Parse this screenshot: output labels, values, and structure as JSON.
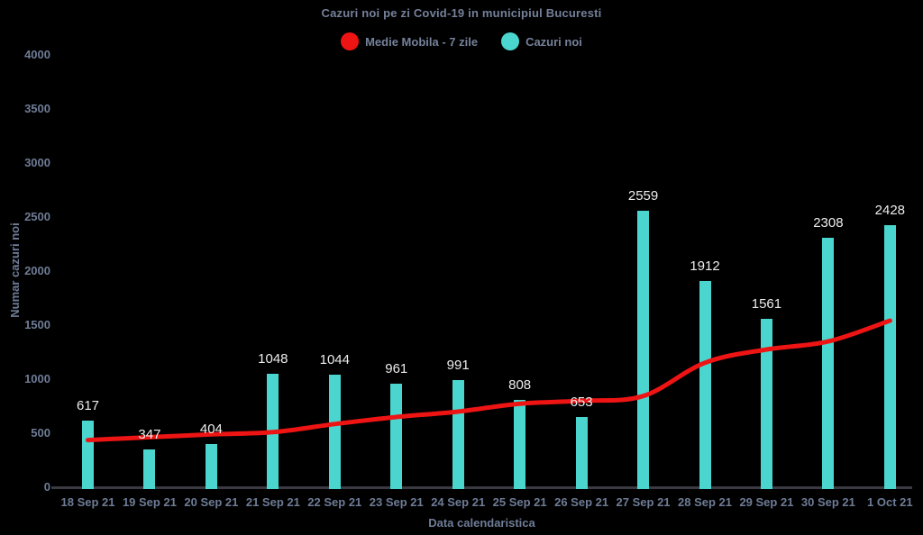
{
  "header": {
    "title": "Cazuri noi pe zi Covid-19 in municipiul Bucuresti"
  },
  "legend": [
    {
      "label": "Medie Mobila - 7 zile",
      "color": "#ee1414",
      "icon": "circle-icon"
    },
    {
      "label": "Cazuri noi",
      "color": "#4ad6ce",
      "icon": "circle-icon"
    }
  ],
  "colors": {
    "background": "#000000",
    "bar": "#4ad6ce",
    "line": "#ee1414",
    "muted_text": "#6e7c96",
    "title_text": "#75819a",
    "value_label": "#ededed",
    "axis_line": "#3a3a42"
  },
  "chart_data": {
    "type": "bar",
    "title": "Cazuri noi pe zi Covid-19 in municipiul Bucuresti",
    "xlabel": "Data calendaristica",
    "ylabel": "Numar cazuri noi",
    "categories": [
      "18 Sep 21",
      "19 Sep 21",
      "20 Sep 21",
      "21 Sep 21",
      "22 Sep 21",
      "23 Sep 21",
      "24 Sep 21",
      "25 Sep 21",
      "26 Sep 21",
      "27 Sep 21",
      "28 Sep 21",
      "29 Sep 21",
      "30 Sep 21",
      "1 Oct 21"
    ],
    "series": [
      {
        "name": "Cazuri noi",
        "type": "bar",
        "color": "#4ad6ce",
        "values": [
          617,
          347,
          404,
          1048,
          1044,
          961,
          991,
          808,
          653,
          2559,
          1912,
          1561,
          2308,
          2428
        ]
      },
      {
        "name": "Medie Mobila - 7 zile",
        "type": "line",
        "color": "#ee1414",
        "values": [
          437,
          463,
          489,
          510,
          585,
          650,
          700,
          773,
          800,
          844,
          1152,
          1275,
          1349,
          1542
        ]
      }
    ],
    "y_ticks": [
      0,
      500,
      1000,
      1500,
      2000,
      2500,
      3000,
      3500,
      4000
    ],
    "ylim": [
      0,
      4000
    ],
    "grid": false,
    "legend_position": "top",
    "data_labels": true
  }
}
